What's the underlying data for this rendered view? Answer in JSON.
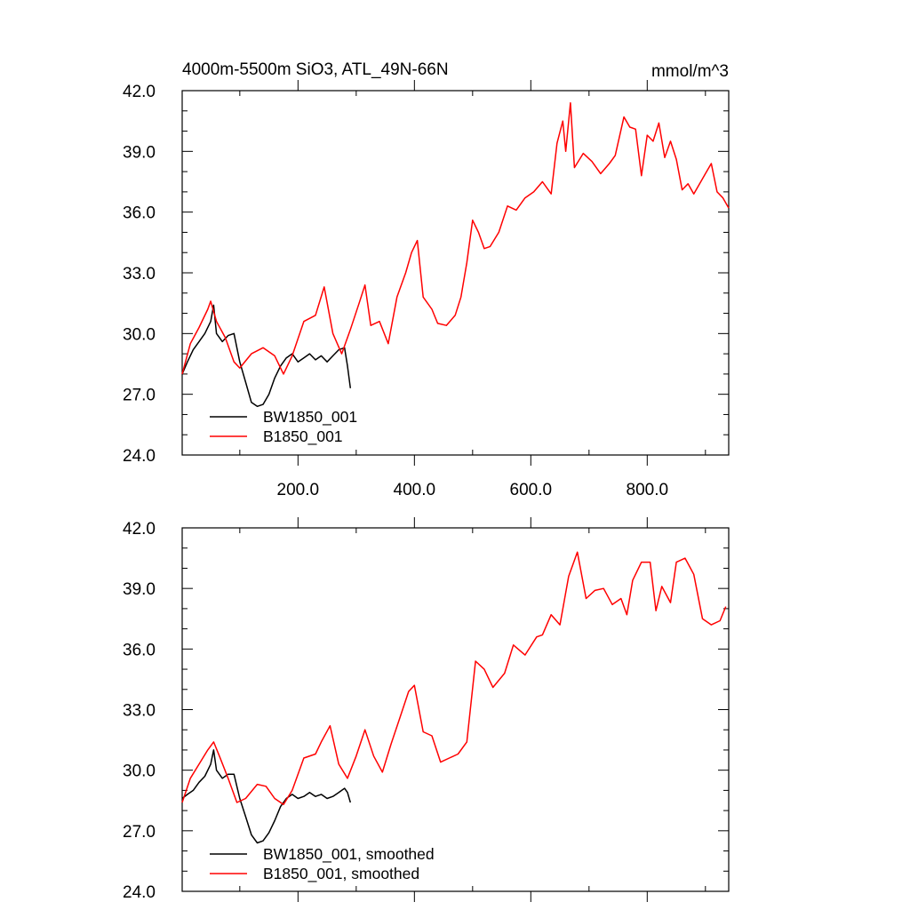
{
  "chart_data": [
    {
      "type": "line",
      "title": "4000m-5500m SiO3, ATL_49N-66N",
      "units": "mmol/m^3",
      "xlim": [
        1,
        940
      ],
      "ylim": [
        24,
        42
      ],
      "xticks": [
        200,
        400,
        600,
        800
      ],
      "xtick_labels": [
        "200.0",
        "400.0",
        "600.0",
        "800.0"
      ],
      "yticks": [
        24,
        27,
        30,
        33,
        36,
        39,
        42
      ],
      "ytick_labels": [
        "24.0",
        "27.0",
        "30.0",
        "33.0",
        "36.0",
        "39.0",
        "42.0"
      ],
      "grid": false,
      "legend_position": "bottom-left",
      "series": [
        {
          "name": "BW1850_001",
          "color": "#000000",
          "x": [
            1,
            10,
            20,
            30,
            40,
            50,
            55,
            60,
            70,
            80,
            90,
            100,
            110,
            120,
            130,
            140,
            150,
            160,
            170,
            180,
            190,
            200,
            210,
            220,
            230,
            240,
            250,
            260,
            270,
            280,
            285,
            290
          ],
          "y": [
            28.0,
            28.6,
            29.2,
            29.6,
            30.0,
            30.6,
            31.4,
            30.0,
            29.6,
            29.9,
            30.0,
            28.6,
            27.6,
            26.6,
            26.4,
            26.5,
            27.0,
            27.8,
            28.4,
            28.8,
            29.0,
            28.6,
            28.8,
            29.0,
            28.7,
            28.9,
            28.6,
            28.9,
            29.2,
            29.3,
            28.4,
            27.3
          ]
        },
        {
          "name": "B1850_001",
          "color": "#ff0000",
          "x": [
            1,
            15,
            30,
            45,
            50,
            60,
            75,
            90,
            100,
            120,
            140,
            160,
            175,
            190,
            210,
            230,
            245,
            260,
            275,
            290,
            305,
            315,
            325,
            340,
            355,
            370,
            385,
            395,
            405,
            415,
            430,
            440,
            455,
            470,
            480,
            490,
            500,
            510,
            520,
            530,
            545,
            560,
            575,
            590,
            605,
            620,
            635,
            645,
            655,
            660,
            668,
            675,
            690,
            705,
            720,
            735,
            745,
            760,
            770,
            780,
            790,
            800,
            810,
            820,
            830,
            840,
            850,
            860,
            870,
            880,
            890,
            900,
            910,
            920,
            930,
            940
          ],
          "y": [
            28.0,
            29.5,
            30.3,
            31.2,
            31.6,
            30.6,
            29.8,
            28.6,
            28.3,
            29.0,
            29.3,
            28.9,
            28.0,
            28.9,
            30.6,
            30.9,
            32.3,
            30.0,
            29.0,
            30.2,
            31.5,
            32.4,
            30.4,
            30.6,
            29.5,
            31.8,
            33.0,
            34.0,
            34.6,
            31.8,
            31.2,
            30.5,
            30.4,
            30.9,
            31.8,
            33.5,
            35.6,
            35.0,
            34.2,
            34.3,
            35.0,
            36.3,
            36.1,
            36.7,
            37.0,
            37.5,
            36.9,
            39.4,
            40.5,
            39.0,
            41.4,
            38.2,
            38.9,
            38.5,
            37.9,
            38.4,
            38.8,
            40.7,
            40.2,
            40.1,
            37.8,
            39.8,
            39.5,
            40.4,
            38.7,
            39.5,
            38.6,
            37.1,
            37.4,
            36.9,
            37.4,
            37.9,
            38.4,
            37.0,
            36.7,
            36.2
          ]
        }
      ]
    },
    {
      "type": "line",
      "title": "",
      "xlim": [
        1,
        940
      ],
      "ylim": [
        24,
        42
      ],
      "xticks": [
        200,
        400,
        600,
        800
      ],
      "yticks": [
        24,
        27,
        30,
        33,
        36,
        39,
        42
      ],
      "ytick_labels": [
        "24.0",
        "27.0",
        "30.0",
        "33.0",
        "36.0",
        "39.0",
        "42.0"
      ],
      "grid": false,
      "legend_position": "bottom-left",
      "series": [
        {
          "name": "BW1850_001, smoothed",
          "color": "#000000",
          "x": [
            1,
            10,
            20,
            30,
            40,
            50,
            55,
            60,
            70,
            80,
            90,
            100,
            110,
            120,
            130,
            140,
            150,
            160,
            170,
            180,
            190,
            200,
            210,
            220,
            230,
            240,
            250,
            260,
            270,
            280,
            285,
            290
          ],
          "y": [
            28.6,
            28.8,
            29.0,
            29.4,
            29.7,
            30.3,
            31.0,
            30.0,
            29.6,
            29.8,
            29.8,
            28.6,
            27.7,
            26.8,
            26.4,
            26.5,
            26.9,
            27.5,
            28.2,
            28.6,
            28.8,
            28.6,
            28.7,
            28.9,
            28.7,
            28.8,
            28.6,
            28.7,
            28.9,
            29.1,
            28.9,
            28.4
          ]
        },
        {
          "name": "B1850_001, smoothed",
          "color": "#ff0000",
          "x": [
            1,
            15,
            30,
            45,
            55,
            65,
            80,
            95,
            110,
            130,
            145,
            160,
            175,
            190,
            210,
            230,
            240,
            255,
            270,
            285,
            300,
            315,
            330,
            345,
            360,
            375,
            390,
            400,
            415,
            430,
            445,
            460,
            475,
            490,
            505,
            520,
            535,
            555,
            570,
            590,
            610,
            620,
            635,
            650,
            665,
            680,
            695,
            710,
            725,
            740,
            755,
            765,
            775,
            790,
            805,
            815,
            825,
            840,
            850,
            865,
            880,
            895,
            910,
            925,
            935
          ],
          "y": [
            28.4,
            29.6,
            30.3,
            31.0,
            31.4,
            30.7,
            29.6,
            28.4,
            28.6,
            29.3,
            29.2,
            28.6,
            28.3,
            29.0,
            30.6,
            30.8,
            31.4,
            32.2,
            30.3,
            29.6,
            30.7,
            32.0,
            30.7,
            29.9,
            31.3,
            32.6,
            33.9,
            34.2,
            31.9,
            31.7,
            30.4,
            30.6,
            30.8,
            31.4,
            35.4,
            35.0,
            34.1,
            34.8,
            36.2,
            35.7,
            36.6,
            36.7,
            37.7,
            37.2,
            39.6,
            40.8,
            38.5,
            38.9,
            39.0,
            38.2,
            38.5,
            37.7,
            39.4,
            40.3,
            40.3,
            37.9,
            39.1,
            38.3,
            40.3,
            40.5,
            39.7,
            37.5,
            37.2,
            37.4,
            38.1
          ]
        }
      ]
    }
  ]
}
